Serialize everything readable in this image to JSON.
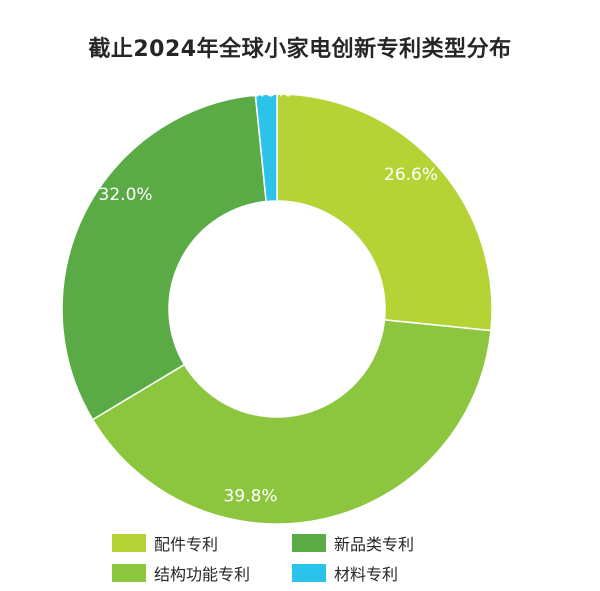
{
  "chart_data": {
    "type": "pie",
    "title": "截止2024年全球小家电创新专利类型分布",
    "style": "donut",
    "series": [
      {
        "name": "配件专利",
        "value": 26.6,
        "label": "26.6%",
        "color": "#b5d335"
      },
      {
        "name": "结构功能专利",
        "value": 39.8,
        "label": "39.8%",
        "color": "#8cc63f"
      },
      {
        "name": "新品类专利",
        "value": 32.0,
        "label": "32.0%",
        "color": "#5aaa46"
      },
      {
        "name": "材料专利",
        "value": 1.6,
        "label": "1.6%",
        "color": "#2cc3ea"
      }
    ],
    "legend": {
      "placement": "bottom",
      "order": [
        "配件专利",
        "新品类专利",
        "结构功能专利",
        "材料专利"
      ]
    }
  }
}
